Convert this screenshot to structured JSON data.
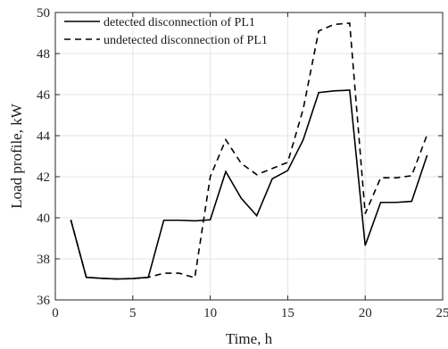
{
  "chart_data": {
    "type": "line",
    "title": "",
    "xlabel": "Time,   h",
    "ylabel": "Load profile,  kW",
    "xlim": [
      0,
      25
    ],
    "ylim": [
      36,
      50
    ],
    "xticks": [
      0,
      5,
      10,
      15,
      20,
      25
    ],
    "yticks": [
      36,
      38,
      40,
      42,
      44,
      46,
      48,
      50
    ],
    "grid": true,
    "legend_position": "top-left",
    "x": [
      1,
      2,
      3,
      4,
      5,
      6,
      7,
      8,
      9,
      10,
      11,
      12,
      13,
      14,
      15,
      16,
      17,
      18,
      19,
      20,
      21,
      22,
      23,
      24
    ],
    "series": [
      {
        "name": "detected disconnection of PL1",
        "style": "solid",
        "color": "#000000",
        "values": [
          39.9,
          37.1,
          37.05,
          37.02,
          37.04,
          37.1,
          39.88,
          39.88,
          39.85,
          39.9,
          42.25,
          40.95,
          40.1,
          41.9,
          42.3,
          43.8,
          46.1,
          46.18,
          46.22,
          38.65,
          40.75,
          40.75,
          40.8,
          43.05
        ]
      },
      {
        "name": "undetected disconnection of PL1",
        "style": "dashed",
        "color": "#000000",
        "values": [
          39.9,
          37.1,
          37.05,
          37.02,
          37.04,
          37.1,
          37.3,
          37.3,
          37.08,
          42.0,
          43.8,
          42.65,
          42.1,
          42.4,
          42.7,
          45.3,
          49.1,
          49.42,
          49.48,
          40.2,
          41.95,
          41.95,
          42.05,
          44.05
        ]
      }
    ]
  }
}
